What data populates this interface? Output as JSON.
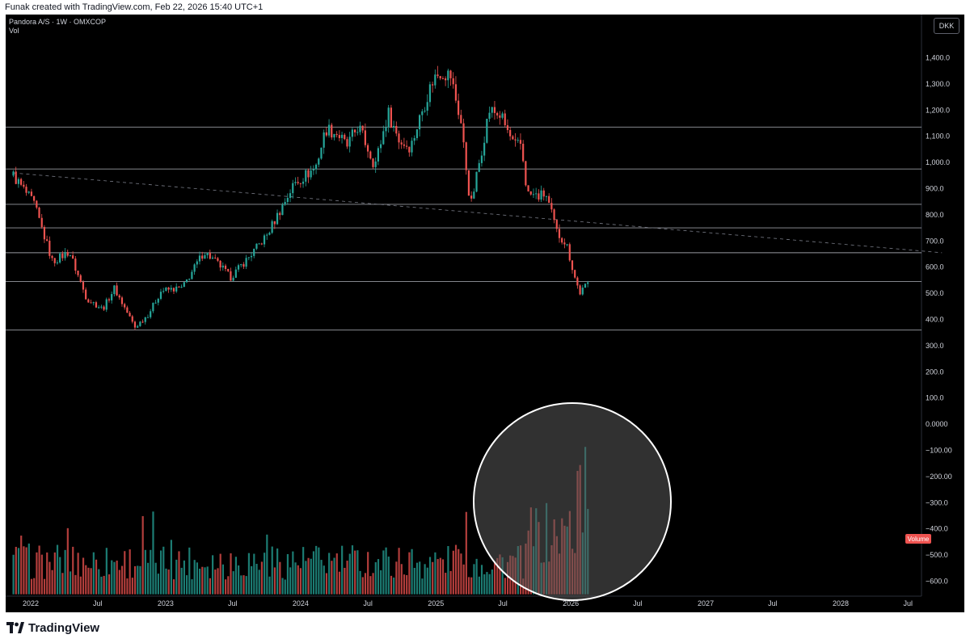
{
  "header": {
    "caption": "Funak created with TradingView.com, Feb 22, 2026 15:40 UTC+1"
  },
  "legend": {
    "symbol_line": "Pandora A/S · 1W · OMXCOP",
    "vol_label": "Vol"
  },
  "currency": "DKK",
  "volume_badge": "Volume",
  "brand": "TradingView",
  "colors": {
    "up": "#26a69a",
    "down": "#ef5350",
    "background": "#000000",
    "grid": "#2a2e39",
    "hline": "#b2b5be"
  },
  "chart_data": {
    "type": "candlestick",
    "interval": "1W",
    "currency": "DKK",
    "ylim": [
      -650,
      1520
    ],
    "y_ticks": [
      "1,400.0",
      "1,300.0",
      "1,200.0",
      "1,100.0",
      "1,000.0",
      "900.0",
      "800.0",
      "700.0",
      "600.0",
      "500.0",
      "400.0",
      "300.0",
      "200.0",
      "100.0",
      "0.0000",
      "−100.00",
      "−200.00",
      "−300.0",
      "−400.0",
      "−500.0",
      "−600.0"
    ],
    "y_tick_values": [
      1400,
      1300,
      1200,
      1100,
      1000,
      900,
      800,
      700,
      600,
      500,
      400,
      300,
      200,
      100,
      0,
      -100,
      -200,
      -300,
      -400,
      -500,
      -600
    ],
    "x_ticks": [
      {
        "label": "2022",
        "date": "2022-01-01"
      },
      {
        "label": "Jul",
        "date": "2022-07-01"
      },
      {
        "label": "2023",
        "date": "2023-01-01"
      },
      {
        "label": "Jul",
        "date": "2023-07-01"
      },
      {
        "label": "2024",
        "date": "2024-01-01"
      },
      {
        "label": "Jul",
        "date": "2024-07-01"
      },
      {
        "label": "2025",
        "date": "2025-01-01"
      },
      {
        "label": "Jul",
        "date": "2025-07-01"
      },
      {
        "label": "2026",
        "date": "2026-01-01"
      },
      {
        "label": "Jul",
        "date": "2026-07-01"
      },
      {
        "label": "2027",
        "date": "2027-01-01"
      },
      {
        "label": "Jul",
        "date": "2027-07-01"
      },
      {
        "label": "2028",
        "date": "2028-01-01"
      },
      {
        "label": "Jul",
        "date": "2028-07-01"
      }
    ],
    "horizontal_levels": [
      1135,
      975,
      840,
      750,
      655,
      545,
      360
    ],
    "trend_line": {
      "from": {
        "date": "2021-11-15",
        "value": 960
      },
      "to": {
        "date": "2028-10-01",
        "value": 655
      }
    },
    "price_anchors": [
      [
        "2021-11-15",
        950
      ],
      [
        "2022-01-10",
        840
      ],
      [
        "2022-03-01",
        620
      ],
      [
        "2022-04-15",
        660
      ],
      [
        "2022-06-01",
        480
      ],
      [
        "2022-07-15",
        440
      ],
      [
        "2022-08-15",
        520
      ],
      [
        "2022-10-10",
        370
      ],
      [
        "2022-11-15",
        420
      ],
      [
        "2022-12-20",
        510
      ],
      [
        "2023-02-15",
        520
      ],
      [
        "2023-04-15",
        660
      ],
      [
        "2023-06-01",
        600
      ],
      [
        "2023-06-25",
        560
      ],
      [
        "2023-08-15",
        640
      ],
      [
        "2023-10-01",
        720
      ],
      [
        "2023-11-15",
        840
      ],
      [
        "2023-12-15",
        920
      ],
      [
        "2024-02-10",
        980
      ],
      [
        "2024-03-10",
        1130
      ],
      [
        "2024-04-10",
        1110
      ],
      [
        "2024-05-05",
        1060
      ],
      [
        "2024-06-05",
        1140
      ],
      [
        "2024-07-20",
        990
      ],
      [
        "2024-08-25",
        1190
      ],
      [
        "2024-09-25",
        1080
      ],
      [
        "2024-10-25",
        1060
      ],
      [
        "2024-11-25",
        1200
      ],
      [
        "2024-12-25",
        1320
      ],
      [
        "2025-01-15",
        1350
      ],
      [
        "2025-02-10",
        1330
      ],
      [
        "2025-03-10",
        1150
      ],
      [
        "2025-04-05",
        830
      ],
      [
        "2025-05-01",
        1020
      ],
      [
        "2025-05-25",
        1200
      ],
      [
        "2025-06-25",
        1180
      ],
      [
        "2025-08-01",
        1060
      ],
      [
        "2025-08-20",
        1070
      ],
      [
        "2025-09-05",
        880
      ],
      [
        "2025-10-05",
        870
      ],
      [
        "2025-10-25",
        880
      ],
      [
        "2025-11-25",
        730
      ],
      [
        "2025-12-20",
        690
      ],
      [
        "2026-01-10",
        570
      ],
      [
        "2026-01-25",
        500
      ],
      [
        "2026-02-20",
        545
      ]
    ],
    "volume_overlay_range": [
      -650,
      -300
    ]
  }
}
